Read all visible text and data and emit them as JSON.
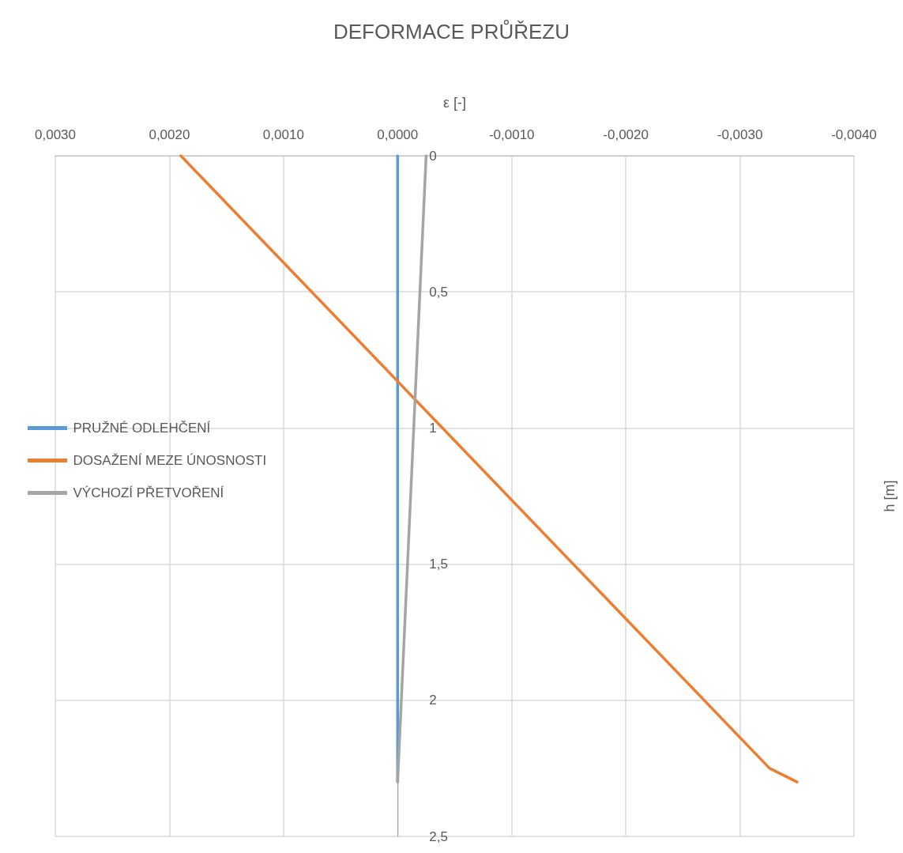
{
  "chart_data": {
    "type": "line",
    "title": "DEFORMACE PRŮŘEZU",
    "xlabel": "ε [-]",
    "ylabel": "h [m]",
    "xlim": [
      0.003,
      -0.004
    ],
    "xticks": [
      {
        "value": 0.003,
        "label": "0,0030"
      },
      {
        "value": 0.002,
        "label": "0,0020"
      },
      {
        "value": 0.001,
        "label": "0,0010"
      },
      {
        "value": 0,
        "label": "0,0000"
      },
      {
        "value": -0.001,
        "label": "-0,0010"
      },
      {
        "value": -0.002,
        "label": "-0,0020"
      },
      {
        "value": -0.003,
        "label": "-0,0030"
      },
      {
        "value": -0.004,
        "label": "-0,0040"
      }
    ],
    "ylim": [
      2.5,
      0
    ],
    "yticks": [
      0,
      {
        "value": 0.5,
        "label": "0,5"
      },
      1,
      {
        "value": 1.5,
        "label": "1,5"
      },
      2,
      {
        "value": 2.5,
        "label": "2,5"
      }
    ],
    "grid": true,
    "legend": "left",
    "marker": "none",
    "line_style": "solid",
    "series": [
      {
        "name": "PRUŽNÉ ODLEHČENÍ",
        "color": "#5b9bd5",
        "x": [
          0,
          0
        ],
        "values": [
          0,
          2.3
        ]
      },
      {
        "name": "DOSAŽENÍ MEZE ÚNOSNOSTI",
        "color": "#ed7d31",
        "x": [
          0.0019,
          -0.00326,
          -0.0035
        ],
        "values": [
          0,
          2.25,
          2.3
        ]
      },
      {
        "name": "VÝCHOZÍ PŘETVOŘENÍ",
        "color": "#a5a5a5",
        "x": [
          -0.00025,
          0
        ],
        "values": [
          0,
          2.3
        ]
      }
    ]
  }
}
